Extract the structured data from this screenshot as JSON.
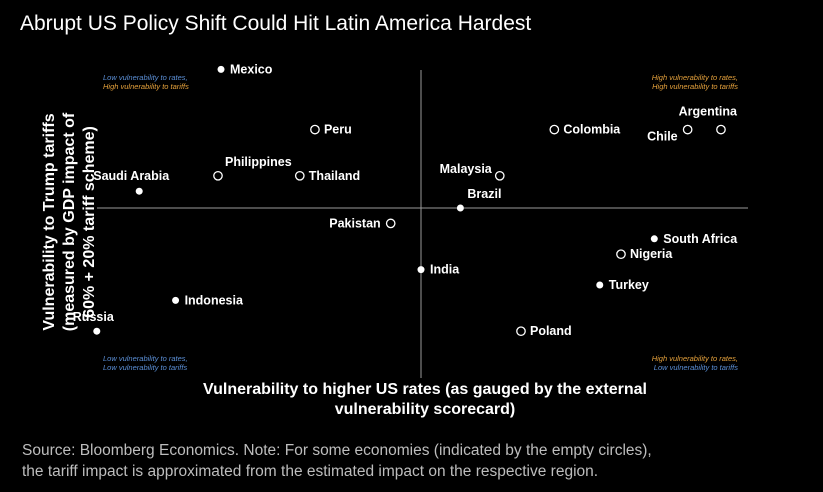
{
  "chart_data": {
    "type": "scatter",
    "title": "Abrupt US Policy Shift Could Hit Latin America Hardest",
    "xlabel_lines": [
      "Vulnerability to higher US rates (as gauged by the external",
      "vulnerability scorecard)"
    ],
    "ylabel_lines": [
      "Vulnerability to Trump tariffs",
      "(measured by GDP impact of",
      "60% + 20% tariff scheme)"
    ],
    "quadrants": {
      "top_left": {
        "line1": "Low vulnerability to rates,",
        "line2": "High vulnerability to tariffs",
        "color1": "#5b8fd6",
        "color2": "#e6a23c"
      },
      "top_right": {
        "line1": "High vulnerability to rates,",
        "line2": "High vulnerability to tariffs",
        "color1": "#e6a23c",
        "color2": "#e6a23c"
      },
      "bottom_left": {
        "line1": "Low vulnerability to rates,",
        "line2": "Low vulnerability to tariffs",
        "color1": "#5b8fd6",
        "color2": "#5b8fd6"
      },
      "bottom_right": {
        "line1": "High vulnerability to rates,",
        "line2": "Low vulnerability to tariffs",
        "color1": "#e6a23c",
        "color2": "#5b8fd6"
      }
    },
    "xlim": [
      -1,
      1
    ],
    "ylim": [
      -1,
      1
    ],
    "points": [
      {
        "name": "Mexico",
        "x": -0.66,
        "y": 0.99,
        "filled": true
      },
      {
        "name": "Peru",
        "x": -0.35,
        "y": 0.56,
        "filled": false
      },
      {
        "name": "Colombia",
        "x": 0.44,
        "y": 0.56,
        "filled": false
      },
      {
        "name": "Chile",
        "x": 0.88,
        "y": 0.56,
        "filled": false
      },
      {
        "name": "Argentina",
        "x": 0.99,
        "y": 0.56,
        "filled": false
      },
      {
        "name": "Saudi Arabia",
        "x": -0.93,
        "y": 0.12,
        "filled": true
      },
      {
        "name": "Philippines",
        "x": -0.67,
        "y": 0.23,
        "filled": false
      },
      {
        "name": "Thailand",
        "x": -0.4,
        "y": 0.23,
        "filled": false
      },
      {
        "name": "Malaysia",
        "x": 0.26,
        "y": 0.23,
        "filled": false
      },
      {
        "name": "Brazil",
        "x": 0.13,
        "y": 0.0,
        "filled": true
      },
      {
        "name": "Pakistan",
        "x": -0.1,
        "y": -0.11,
        "filled": false
      },
      {
        "name": "South Africa",
        "x": 0.77,
        "y": -0.22,
        "filled": true
      },
      {
        "name": "Nigeria",
        "x": 0.66,
        "y": -0.33,
        "filled": false
      },
      {
        "name": "India",
        "x": 0.0,
        "y": -0.44,
        "filled": true
      },
      {
        "name": "Turkey",
        "x": 0.59,
        "y": -0.55,
        "filled": true
      },
      {
        "name": "Indonesia",
        "x": -0.81,
        "y": -0.66,
        "filled": true
      },
      {
        "name": "Russia",
        "x": -1.07,
        "y": -0.88,
        "filled": true
      },
      {
        "name": "Poland",
        "x": 0.33,
        "y": -0.88,
        "filled": false
      }
    ]
  },
  "footer": {
    "line1": "Source: Bloomberg Economics. Note: For some economies (indicated by the empty circles),",
    "line2": "the tariff impact is approximated from the estimated impact on the respective region."
  }
}
